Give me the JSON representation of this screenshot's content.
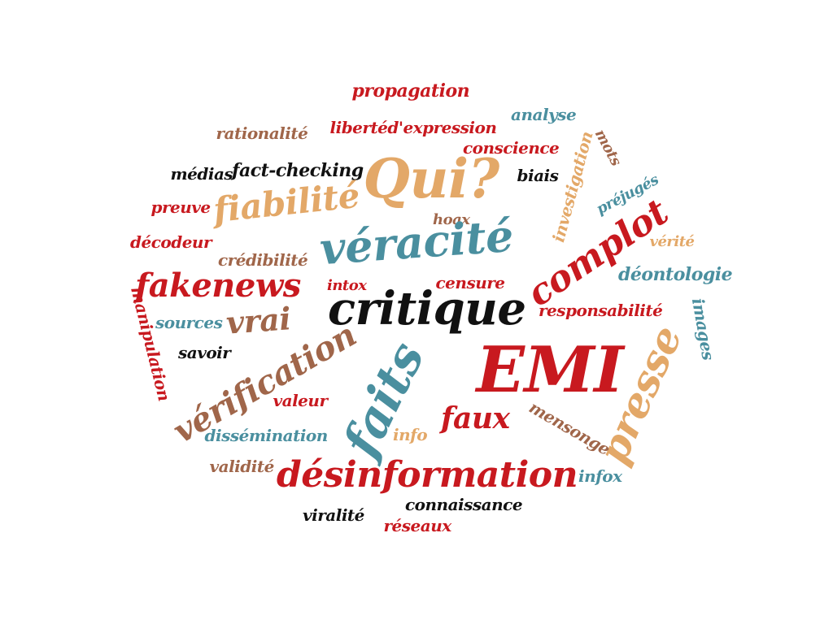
{
  "colors": {
    "red": "#c8191f",
    "teal": "#4a8f9f",
    "sand": "#e3a868",
    "brown": "#a0664a",
    "black": "#111111"
  },
  "words": [
    {
      "text": "propagation",
      "color": "red"
    },
    {
      "text": "analyse",
      "color": "teal"
    },
    {
      "text": "rationalité",
      "color": "brown"
    },
    {
      "text": "libertéd'expression",
      "color": "red"
    },
    {
      "text": "conscience",
      "color": "red"
    },
    {
      "text": "investigation",
      "color": "sand"
    },
    {
      "text": "mots",
      "color": "brown"
    },
    {
      "text": "médias",
      "color": "black"
    },
    {
      "text": "fact-checking",
      "color": "black"
    },
    {
      "text": "Qui?",
      "color": "sand"
    },
    {
      "text": "biais",
      "color": "black"
    },
    {
      "text": "préjugés",
      "color": "teal"
    },
    {
      "text": "preuve",
      "color": "red"
    },
    {
      "text": "fiabilité",
      "color": "sand"
    },
    {
      "text": "hoax",
      "color": "brown"
    },
    {
      "text": "décodeur",
      "color": "red"
    },
    {
      "text": "véracité",
      "color": "teal"
    },
    {
      "text": "complot",
      "color": "red"
    },
    {
      "text": "vérité",
      "color": "sand"
    },
    {
      "text": "crédibilité",
      "color": "brown"
    },
    {
      "text": "déontologie",
      "color": "teal"
    },
    {
      "text": "fakenews",
      "color": "red"
    },
    {
      "text": "intox",
      "color": "red"
    },
    {
      "text": "censure",
      "color": "red"
    },
    {
      "text": "critique",
      "color": "black"
    },
    {
      "text": "manipulation",
      "color": "red"
    },
    {
      "text": "images",
      "color": "teal"
    },
    {
      "text": "responsabilité",
      "color": "red"
    },
    {
      "text": "sources",
      "color": "teal"
    },
    {
      "text": "vrai",
      "color": "brown"
    },
    {
      "text": "savoir",
      "color": "black"
    },
    {
      "text": "EMI",
      "color": "red"
    },
    {
      "text": "vérification",
      "color": "brown"
    },
    {
      "text": "presse",
      "color": "sand"
    },
    {
      "text": "faits",
      "color": "teal"
    },
    {
      "text": "valeur",
      "color": "red"
    },
    {
      "text": "mensonge",
      "color": "brown"
    },
    {
      "text": "faux",
      "color": "red"
    },
    {
      "text": "dissémination",
      "color": "teal"
    },
    {
      "text": "info",
      "color": "sand"
    },
    {
      "text": "validité",
      "color": "brown"
    },
    {
      "text": "désinformation",
      "color": "red"
    },
    {
      "text": "infox",
      "color": "teal"
    },
    {
      "text": "viralité",
      "color": "black"
    },
    {
      "text": "connaissance",
      "color": "black"
    },
    {
      "text": "réseaux",
      "color": "red"
    }
  ]
}
